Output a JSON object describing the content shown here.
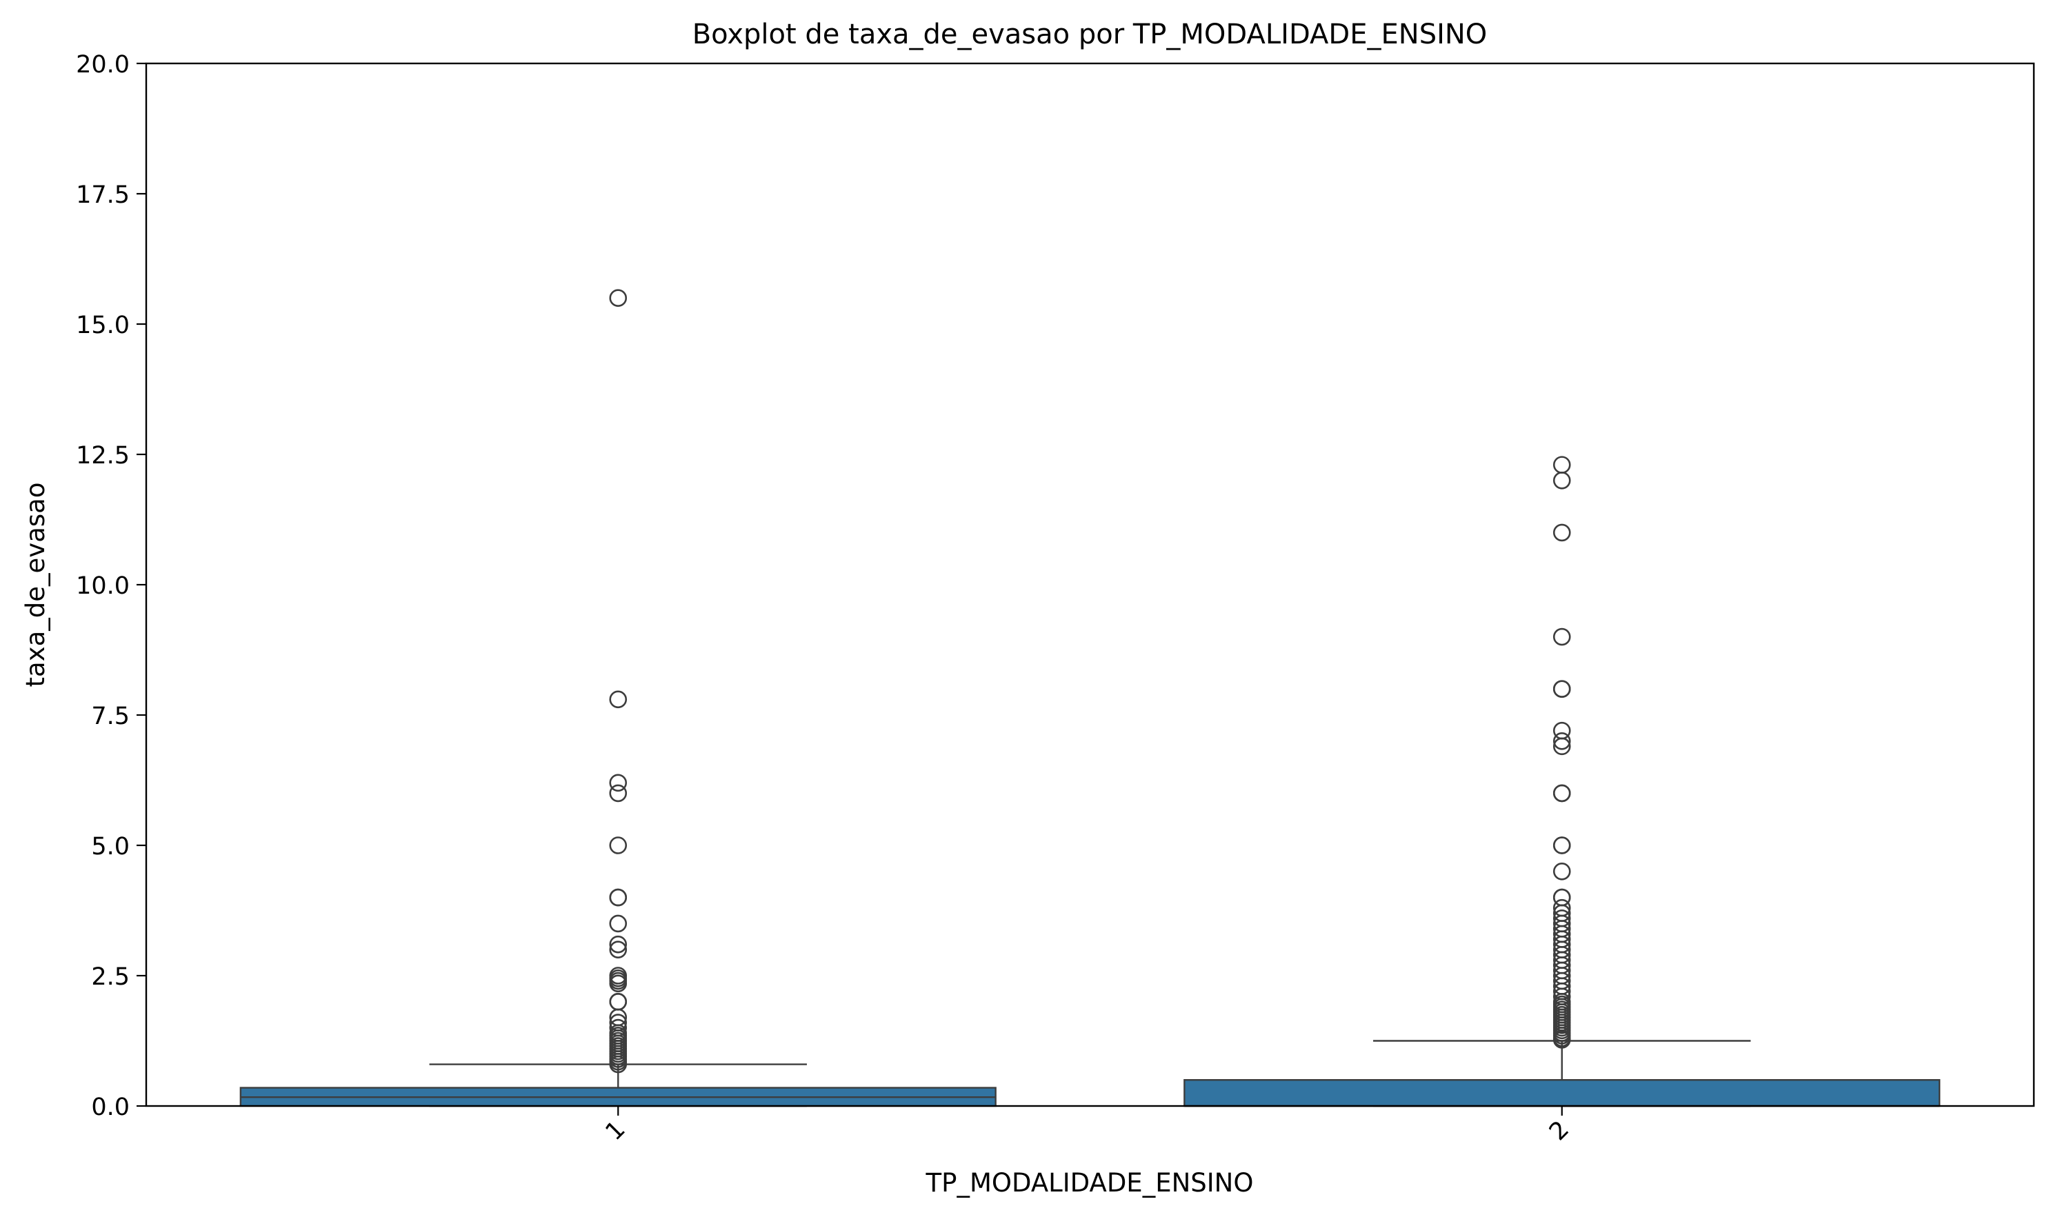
{
  "chart_data": {
    "type": "boxplot",
    "title": "Boxplot de taxa_de_evasao por TP_MODALIDADE_ENSINO",
    "xlabel": "TP_MODALIDADE_ENSINO",
    "ylabel": "taxa_de_evasao",
    "ylim": [
      0,
      20
    ],
    "y_ticks": [
      "0.0",
      "2.5",
      "5.0",
      "7.5",
      "10.0",
      "12.5",
      "15.0",
      "17.5",
      "20.0"
    ],
    "categories": [
      "1",
      "2"
    ],
    "grid": false,
    "legend": "none",
    "colors": {
      "box": "#3274a1",
      "line": "#3d3d3d",
      "axis": "#000000"
    },
    "boxes": [
      {
        "category": "1",
        "whisker_low": 0.0,
        "q1": 0.0,
        "median": 0.17,
        "q3": 0.35,
        "whisker_high": 0.8,
        "outliers": [
          15.5,
          7.8,
          6.2,
          6.0,
          5.0,
          4.0,
          4.0,
          3.5,
          3.1,
          3.0,
          2.5,
          2.45,
          2.4,
          2.35,
          2.0,
          2.0,
          1.7,
          1.6,
          1.5,
          1.4,
          1.35,
          1.3,
          1.25,
          1.2,
          1.15,
          1.1,
          1.05,
          1.0,
          0.95,
          0.9,
          0.85,
          0.8
        ]
      },
      {
        "category": "2",
        "whisker_low": 0.0,
        "q1": 0.0,
        "median": 0.0,
        "q3": 0.5,
        "whisker_high": 1.25,
        "outliers": [
          12.3,
          12.0,
          11.0,
          9.0,
          8.0,
          8.0,
          7.2,
          7.0,
          6.9,
          6.0,
          6.0,
          5.0,
          5.0,
          4.5,
          4.0,
          4.0,
          3.8,
          3.7,
          3.6,
          3.5,
          3.4,
          3.3,
          3.2,
          3.1,
          3.0,
          2.9,
          2.8,
          2.7,
          2.6,
          2.5,
          2.4,
          2.3,
          2.2,
          2.1,
          2.0,
          1.95,
          1.9,
          1.85,
          1.8,
          1.75,
          1.7,
          1.65,
          1.6,
          1.55,
          1.5,
          1.45,
          1.4,
          1.35,
          1.3,
          1.27
        ]
      }
    ]
  }
}
